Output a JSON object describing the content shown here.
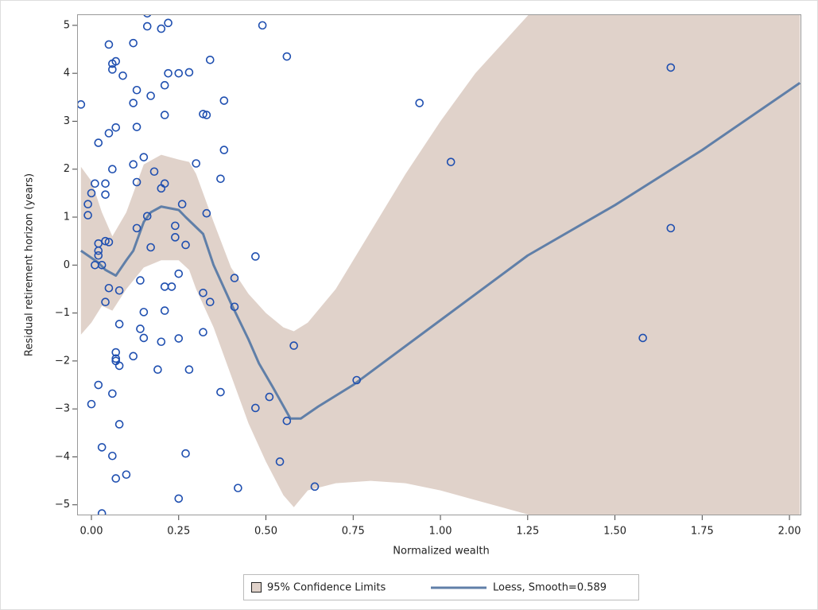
{
  "chart_data": {
    "type": "scatter",
    "x_label": "Normalized wealth",
    "y_label": "Residual retirement horizon (years)",
    "xlim": [
      -0.041,
      2.034
    ],
    "ylim": [
      -5.22,
      5.23
    ],
    "xticks": [
      {
        "value": 0,
        "label": "0.00"
      },
      {
        "value": 0.25,
        "label": "0.25"
      },
      {
        "value": 0.5,
        "label": "0.50"
      },
      {
        "value": 0.75,
        "label": "0.75"
      },
      {
        "value": 1,
        "label": "1.00"
      },
      {
        "value": 1.25,
        "label": "1.25"
      },
      {
        "value": 1.5,
        "label": "1.50"
      },
      {
        "value": 1.75,
        "label": "1.75"
      },
      {
        "value": 2,
        "label": "2.00"
      }
    ],
    "yticks": [
      {
        "value": -5,
        "label": "−5"
      },
      {
        "value": -4,
        "label": "−4"
      },
      {
        "value": -3,
        "label": "−3"
      },
      {
        "value": -2,
        "label": "−2"
      },
      {
        "value": -1,
        "label": "−1"
      },
      0,
      1,
      2,
      3,
      4,
      5
    ],
    "series": [
      {
        "name": "95% Confidence Limits",
        "type": "band",
        "color": "#e0d2ca",
        "x": [
          -0.03,
          0,
          0.03,
          0.06,
          0.1,
          0.15,
          0.2,
          0.25,
          0.28,
          0.3,
          0.35,
          0.4,
          0.45,
          0.5,
          0.55,
          0.58,
          0.62,
          0.7,
          0.8,
          0.9,
          1.0,
          1.1,
          1.2,
          1.3,
          1.5,
          1.75,
          2.03
        ],
        "upper": [
          2.05,
          1.75,
          1.1,
          0.6,
          1.1,
          2.1,
          2.3,
          2.2,
          2.15,
          1.9,
          0.9,
          -0.05,
          -0.6,
          -1.0,
          -1.3,
          -1.38,
          -1.2,
          -0.5,
          0.7,
          1.9,
          3.0,
          4.0,
          4.8,
          5.6,
          7.5,
          9.5,
          11.5
        ],
        "lower": [
          -1.45,
          -1.2,
          -0.85,
          -0.95,
          -0.5,
          -0.05,
          0.1,
          0.1,
          -0.1,
          -0.5,
          -1.3,
          -2.3,
          -3.3,
          -4.1,
          -4.8,
          -5.05,
          -4.7,
          -4.55,
          -4.5,
          -4.55,
          -4.7,
          -4.9,
          -5.1,
          -5.3,
          -5.6,
          -6.0,
          -6.4
        ]
      },
      {
        "name": "Loess, Smooth=0.589",
        "type": "line",
        "color": "#607fa8",
        "x": [
          -0.03,
          0,
          0.02,
          0.04,
          0.07,
          0.1,
          0.12,
          0.15,
          0.17,
          0.2,
          0.25,
          0.27,
          0.32,
          0.35,
          0.4,
          0.45,
          0.48,
          0.52,
          0.57,
          0.6,
          0.65,
          0.75,
          1.0,
          1.25,
          1.5,
          1.75,
          2.03
        ],
        "values": [
          0.3,
          0.15,
          0.05,
          -0.1,
          -0.22,
          0.1,
          0.3,
          0.9,
          1.1,
          1.22,
          1.15,
          1.0,
          0.65,
          0.0,
          -0.8,
          -1.55,
          -2.05,
          -2.55,
          -3.2,
          -3.2,
          -2.95,
          -2.5,
          -1.15,
          0.2,
          1.25,
          2.4,
          3.8
        ]
      }
    ],
    "points": {
      "color": "#1f4fb0",
      "x": [
        -0.03,
        0.0,
        -0.01,
        -0.01,
        0.0,
        0.01,
        0.01,
        0.02,
        0.02,
        0.02,
        0.02,
        0.02,
        0.03,
        0.03,
        0.03,
        0.04,
        0.04,
        0.04,
        0.04,
        0.05,
        0.05,
        0.05,
        0.05,
        0.06,
        0.06,
        0.06,
        0.06,
        0.06,
        0.07,
        0.07,
        0.07,
        0.07,
        0.07,
        0.07,
        0.08,
        0.08,
        0.08,
        0.08,
        0.09,
        0.1,
        0.12,
        0.12,
        0.12,
        0.13,
        0.13,
        0.13,
        0.13,
        0.14,
        0.12,
        0.14,
        0.15,
        0.15,
        0.15,
        0.16,
        0.16,
        0.16,
        0.17,
        0.17,
        0.18,
        0.19,
        0.2,
        0.2,
        0.2,
        0.21,
        0.21,
        0.21,
        0.21,
        0.21,
        0.22,
        0.22,
        0.23,
        0.24,
        0.24,
        0.25,
        0.25,
        0.25,
        0.25,
        0.26,
        0.27,
        0.27,
        0.28,
        0.28,
        0.3,
        0.32,
        0.32,
        0.32,
        0.33,
        0.33,
        0.34,
        0.34,
        0.37,
        0.37,
        0.38,
        0.38,
        0.41,
        0.41,
        0.42,
        0.47,
        0.47,
        0.49,
        0.51,
        0.54,
        0.56,
        0.56,
        0.58,
        0.64,
        0.76,
        0.94,
        1.03,
        1.58,
        1.66,
        1.66
      ],
      "values": [
        3.35,
        1.5,
        1.27,
        1.04,
        -2.9,
        1.7,
        0.0,
        0.45,
        0.3,
        0.2,
        2.55,
        -2.5,
        0.0,
        -5.18,
        -3.8,
        0.5,
        1.47,
        1.7,
        -0.77,
        0.48,
        -0.48,
        4.6,
        2.75,
        2.0,
        -2.68,
        4.2,
        4.08,
        -3.98,
        4.25,
        2.87,
        -1.82,
        -1.95,
        -2.0,
        -4.45,
        -2.1,
        -0.53,
        -3.32,
        -1.23,
        3.95,
        -4.37,
        4.63,
        2.1,
        3.38,
        3.65,
        2.88,
        1.73,
        0.77,
        -0.32,
        -1.9,
        -1.33,
        -1.52,
        -0.98,
        2.25,
        1.02,
        4.98,
        5.25,
        0.37,
        3.53,
        1.95,
        -2.18,
        4.93,
        -1.6,
        1.6,
        1.7,
        -0.95,
        3.13,
        3.75,
        -0.45,
        4.0,
        5.05,
        -0.45,
        0.58,
        0.82,
        4.0,
        -1.53,
        -0.18,
        -4.87,
        1.27,
        -3.93,
        0.42,
        4.02,
        -2.18,
        2.12,
        3.15,
        -1.4,
        -0.58,
        3.13,
        1.08,
        4.28,
        -0.77,
        -2.65,
        1.8,
        2.4,
        3.43,
        -0.87,
        -0.27,
        -4.65,
        0.18,
        -2.98,
        5.0,
        -2.75,
        -4.1,
        4.35,
        -3.25,
        -1.68,
        -4.62,
        -2.4,
        3.38,
        2.15,
        -1.52,
        4.12,
        0.77
      ]
    }
  }
}
